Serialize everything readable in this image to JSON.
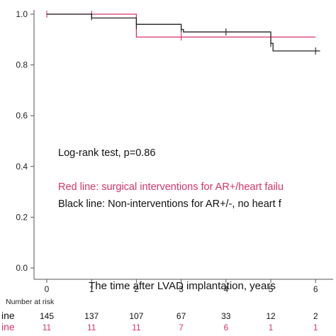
{
  "chart_data": {
    "type": "line",
    "subtype": "kaplan-meier",
    "title": "",
    "xlabel": "The time after LVAD implantation, years",
    "ylabel": "",
    "xlim": [
      -0.3,
      6.3
    ],
    "ylim": [
      0.0,
      1.0
    ],
    "xticks": [
      "0",
      "1",
      "2",
      "3",
      "4",
      "5",
      "6"
    ],
    "yticks": [
      "0.0",
      "0.2",
      "0.4",
      "0.6",
      "0.8",
      "1.0"
    ],
    "grid": false,
    "series": [
      {
        "color": "#d6336c",
        "steps": [
          [
            0,
            1.0
          ],
          [
            2,
            0.91
          ],
          [
            6.0,
            0.91
          ]
        ],
        "censor_marks": [
          [
            0,
            1.0
          ],
          [
            1,
            1.0
          ],
          [
            3,
            0.91
          ],
          [
            5,
            0.91
          ]
        ]
      },
      {
        "color": "#222222",
        "steps": [
          [
            0,
            1.0
          ],
          [
            1,
            0.985
          ],
          [
            2,
            0.96
          ],
          [
            3,
            0.94
          ],
          [
            3.05,
            0.93
          ],
          [
            5,
            0.885
          ],
          [
            5.05,
            0.855
          ],
          [
            6.1,
            0.855
          ]
        ],
        "censor_marks": [
          [
            1,
            0.99
          ],
          [
            2,
            0.955
          ],
          [
            3,
            0.94
          ],
          [
            4,
            0.93
          ],
          [
            5,
            0.885
          ],
          [
            6,
            0.855
          ]
        ]
      }
    ],
    "annotations": [
      {
        "text": "Log-rank test, p=0.86",
        "color": "#111111"
      },
      {
        "text": "Red line: surgical interventions for AR+/heart failu",
        "color": "#d6336c"
      },
      {
        "text": "Black line: Non-interventions for AR+/-, no heart f",
        "color": "#111111"
      }
    ],
    "risk_table": {
      "header": "Number at risk",
      "rows": [
        {
          "label": "ine",
          "color": "#111111",
          "values": [
            "145",
            "137",
            "107",
            "67",
            "33",
            "12",
            "2"
          ]
        },
        {
          "label": "ine",
          "color": "#d6336c",
          "values": [
            "11",
            "11",
            "11",
            "7",
            "6",
            "1",
            "1"
          ]
        }
      ]
    }
  }
}
